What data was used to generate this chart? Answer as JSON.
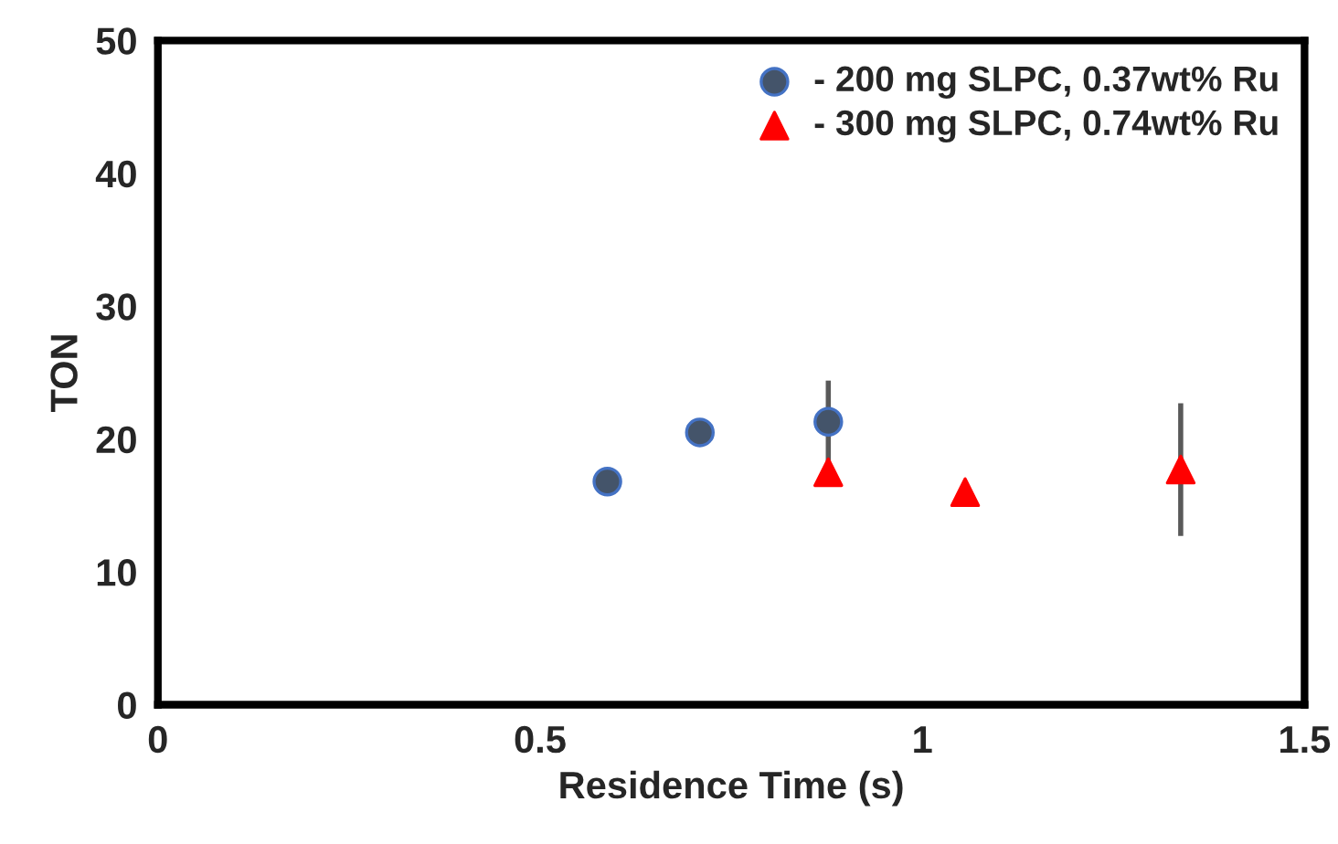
{
  "chart_data": {
    "type": "scatter",
    "xlabel": "Residence Time (s)",
    "ylabel": "TON",
    "xlim": [
      0,
      1.5
    ],
    "xticks": [
      0,
      0.5,
      1,
      1.5
    ],
    "ylim": [
      0,
      50
    ],
    "yticks": [
      0,
      10,
      20,
      30,
      40,
      50
    ],
    "grid": false,
    "legend": "top right",
    "series": [
      {
        "name": "- 200 mg SLPC, 0.37wt% Ru",
        "color": "#44546a",
        "marker": "circle",
        "x": [
          0.588,
          0.709,
          0.877
        ],
        "values": [
          16.8,
          20.5,
          21.3
        ],
        "errors": [
          null,
          null,
          3.1
        ]
      },
      {
        "name": "- 300 mg SLPC, 0.74wt% Ru",
        "color": "#ff0000",
        "marker": "triangle",
        "x": [
          0.877,
          1.056,
          1.338
        ],
        "values": [
          17.5,
          16.0,
          17.7
        ],
        "errors": [
          null,
          null,
          5.0
        ]
      }
    ]
  }
}
